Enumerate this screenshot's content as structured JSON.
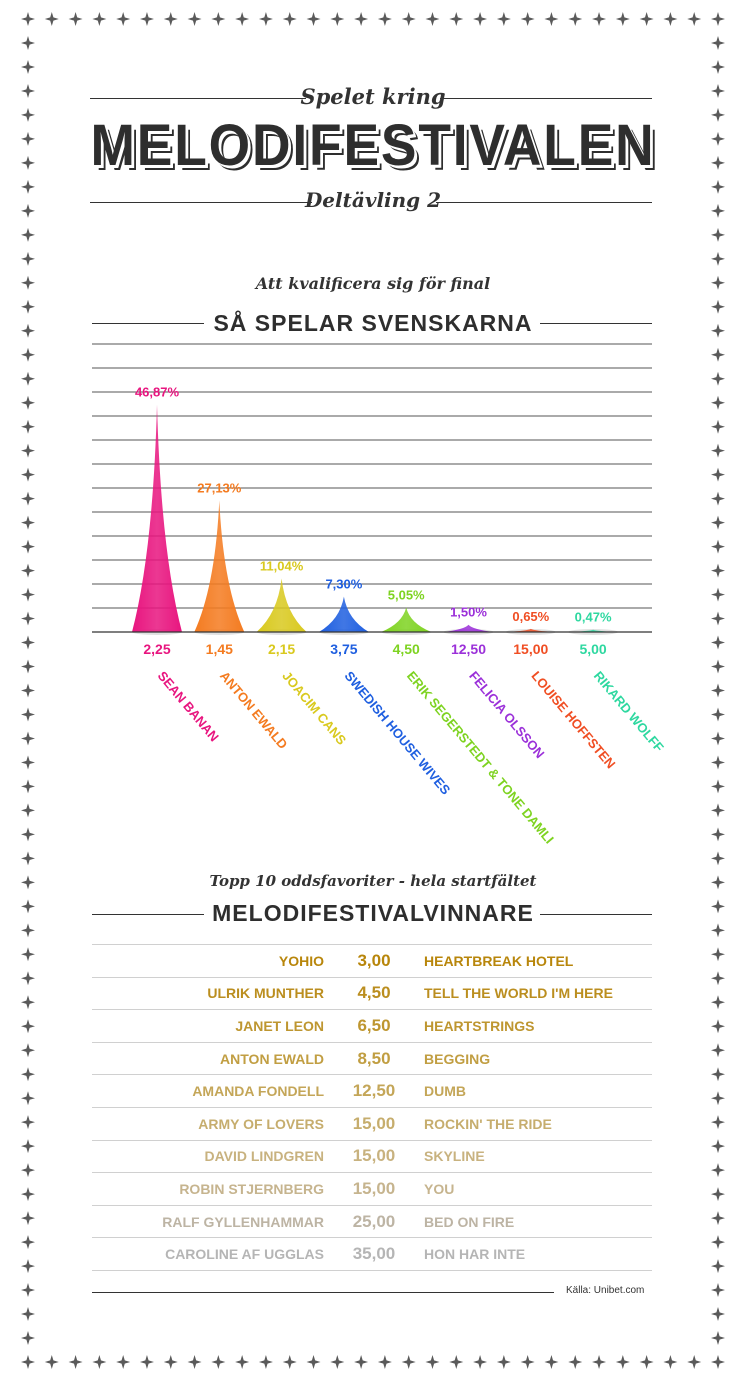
{
  "header": {
    "kicker": "Spelet kring",
    "title": "MELODIFESTIVALEN",
    "subkicker": "Deltävling 2"
  },
  "chart_section": {
    "kicker": "Att kvalificera sig för final",
    "title": "SÅ SPELAR SVENSKARNA"
  },
  "chart_data": {
    "type": "bar",
    "title": "SÅ SPELAR SVENSKARNA",
    "categories": [
      "SEAN BANAN",
      "ANTON EWALD",
      "JOACIM CANS",
      "SWEDISH HOUSE WIVES",
      "ERIK SEGERSTEDT & TONE DAMLI",
      "FELICIA OLSSON",
      "LOUISE HOFFSTEN",
      "RIKARD WOLFF"
    ],
    "values": [
      46.87,
      27.13,
      11.04,
      7.3,
      5.05,
      1.5,
      0.65,
      0.47
    ],
    "value_labels": [
      "46,87%",
      "27,13%",
      "11,04%",
      "7,30%",
      "5,05%",
      "1,50%",
      "0,65%",
      "0,47%"
    ],
    "odds": [
      "2,25",
      "1,45",
      "2,15",
      "3,75",
      "4,50",
      "12,50",
      "15,00",
      "5,00"
    ],
    "colors": [
      "#e8157f",
      "#f47b20",
      "#d9c91e",
      "#1f5fe0",
      "#7ed321",
      "#9b30d9",
      "#f04e23",
      "#2ed8a0"
    ],
    "ylim": [
      0,
      50
    ],
    "grid": true
  },
  "odds_section": {
    "kicker": "Topp 10 oddsfavoriter - hela startfältet",
    "title": "MELODIFESTIVALVINNARE",
    "rows": [
      {
        "artist": "YOHIO",
        "odds": "3,00",
        "song": "HEARTBREAK HOTEL",
        "color": "#b8860b"
      },
      {
        "artist": "ULRIK MUNTHER",
        "odds": "4,50",
        "song": "TELL THE WORLD I'M HERE",
        "color": "#bb8e1f"
      },
      {
        "artist": "JANET LEON",
        "odds": "6,50",
        "song": "HEARTSTRINGS",
        "color": "#be9630"
      },
      {
        "artist": "ANTON EWALD",
        "odds": "8,50",
        "song": "BEGGING",
        "color": "#c19e42"
      },
      {
        "artist": "AMANDA FONDELL",
        "odds": "12,50",
        "song": "DUMB",
        "color": "#c4a658"
      },
      {
        "artist": "ARMY OF LOVERS",
        "odds": "15,00",
        "song": "ROCKIN' THE RIDE",
        "color": "#c6ad6d"
      },
      {
        "artist": "DAVID LINDGREN",
        "odds": "15,00",
        "song": "SKYLINE",
        "color": "#c8b27f"
      },
      {
        "artist": "ROBIN STJERNBERG",
        "odds": "15,00",
        "song": "YOU",
        "color": "#c6b48e"
      },
      {
        "artist": "RALF GYLLENHAMMAR",
        "odds": "25,00",
        "song": "BED ON FIRE",
        "color": "#bdb4a4"
      },
      {
        "artist": "CAROLINE AF UGGLAS",
        "odds": "35,00",
        "song": "HON HAR INTE",
        "color": "#b5b5b5"
      }
    ]
  },
  "source": "Källa: Unibet.com"
}
